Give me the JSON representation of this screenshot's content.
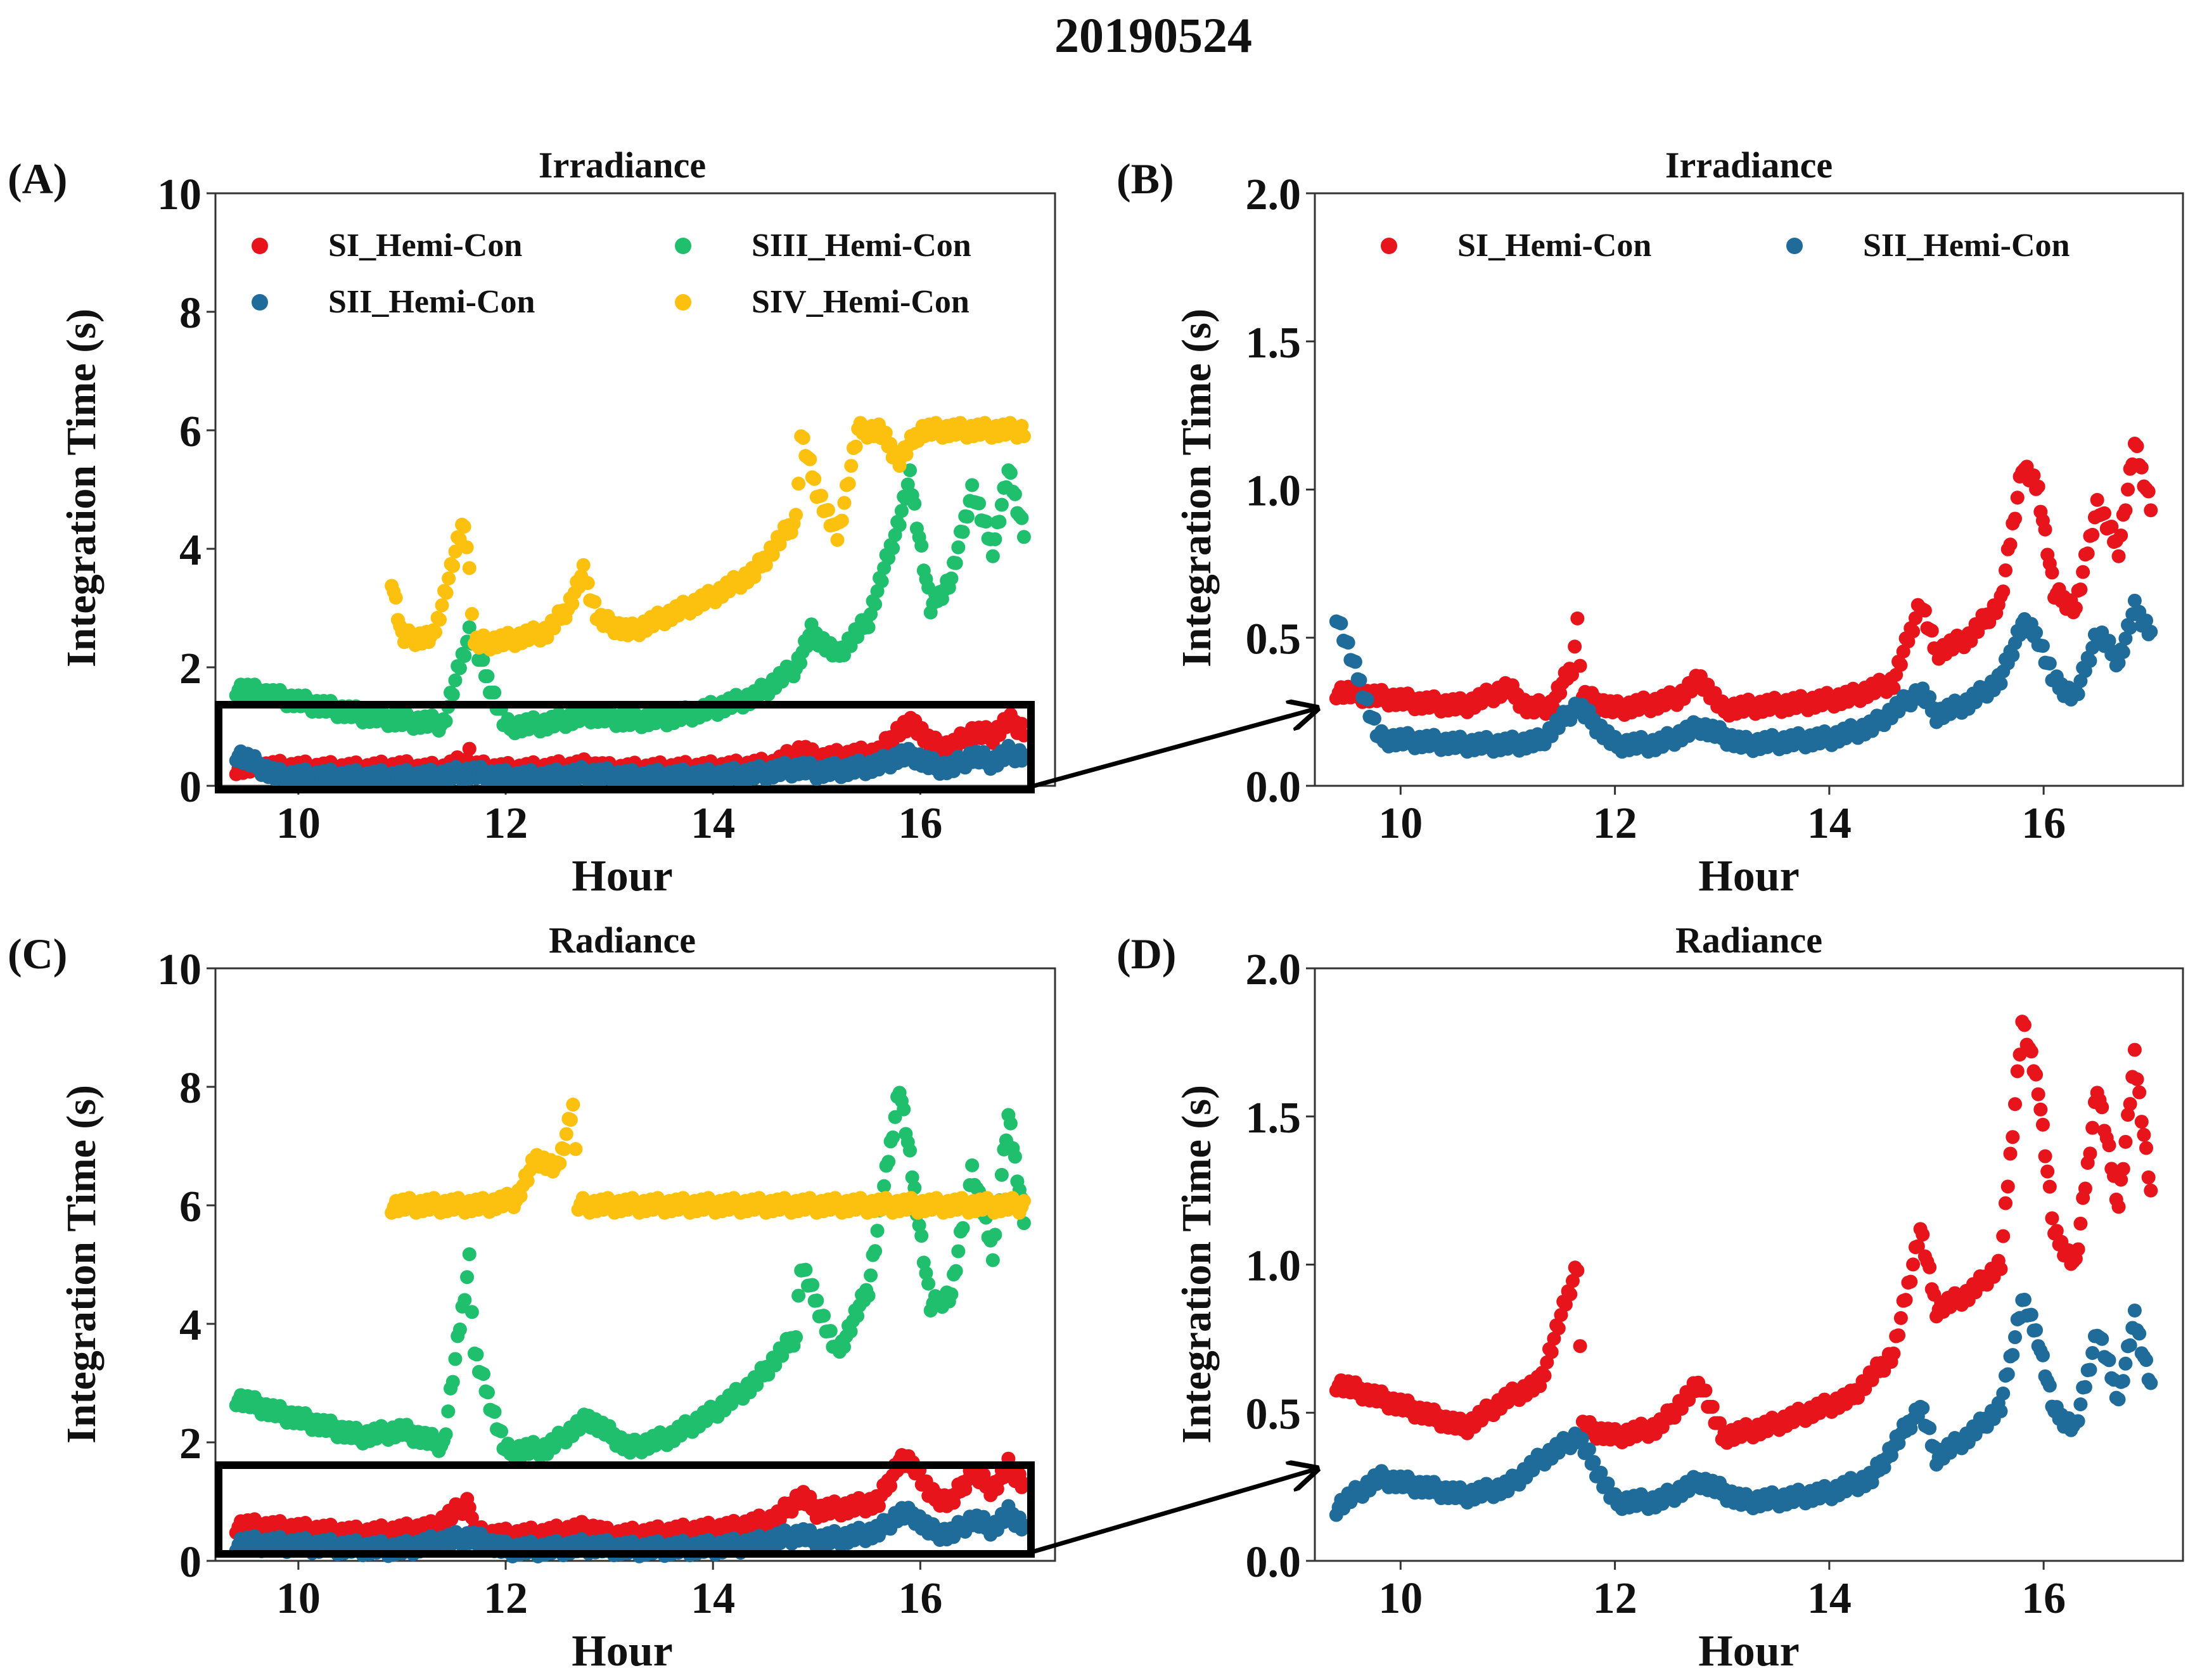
{
  "figure_title": "20190524",
  "colors": {
    "SI": "#e8141c",
    "SII": "#1f6b9a",
    "SIII": "#1fbf6e",
    "SIV": "#fcc10f",
    "axis": "#333333",
    "text": "#111111"
  },
  "chart_data": [
    {
      "panel": "(A)",
      "type": "scatter",
      "title": "Irradiance",
      "xlabel": "Hour",
      "ylabel": "Integration Time (s)",
      "xlim": [
        9.2,
        17.3
      ],
      "ylim": [
        0,
        10
      ],
      "xticks": [
        10,
        12,
        14,
        16
      ],
      "yticks": [
        0,
        2,
        4,
        6,
        8,
        10
      ],
      "xtick_labels": [
        "10",
        "12",
        "14",
        "16"
      ],
      "ytick_labels": [
        "0",
        "2",
        "4",
        "6",
        "8",
        "10"
      ],
      "legend": "top, two columns",
      "zoom_box": {
        "x": [
          9.3,
          17.05
        ],
        "y": [
          0,
          1.3
        ]
      },
      "series": [
        {
          "name": "SI_Hemi-Con",
          "color_key": "SI",
          "x": [
            9.4,
            9.8,
            10.2,
            10.6,
            11.0,
            11.2,
            11.4,
            11.6,
            11.65,
            11.7,
            12.0,
            12.4,
            12.6,
            12.8,
            13.0,
            13.4,
            13.8,
            14.2,
            14.6,
            14.85,
            15.0,
            15.3,
            15.6,
            15.8,
            15.95,
            16.1,
            16.3,
            16.5,
            16.7,
            16.85,
            17.0
          ],
          "y": [
            0.32,
            0.3,
            0.28,
            0.27,
            0.3,
            0.26,
            0.27,
            0.4,
            0.55,
            0.3,
            0.26,
            0.28,
            0.3,
            0.33,
            0.26,
            0.27,
            0.28,
            0.3,
            0.35,
            0.6,
            0.45,
            0.5,
            0.55,
            0.95,
            1.05,
            0.7,
            0.65,
            0.9,
            0.85,
            1.1,
            0.95
          ]
        },
        {
          "name": "SII_Hemi-Con",
          "color_key": "SII",
          "x": [
            9.4,
            9.8,
            10.2,
            10.6,
            11.0,
            11.3,
            11.65,
            12.0,
            12.4,
            12.8,
            13.2,
            13.6,
            14.0,
            14.4,
            14.85,
            15.0,
            15.3,
            15.6,
            15.8,
            15.95,
            16.1,
            16.3,
            16.5,
            16.7,
            16.85,
            17.0
          ],
          "y": [
            0.55,
            0.16,
            0.15,
            0.14,
            0.14,
            0.15,
            0.22,
            0.14,
            0.14,
            0.2,
            0.14,
            0.15,
            0.16,
            0.2,
            0.3,
            0.24,
            0.28,
            0.35,
            0.5,
            0.5,
            0.35,
            0.3,
            0.5,
            0.4,
            0.55,
            0.52
          ]
        },
        {
          "name": "SIII_Hemi-Con",
          "color_key": "SIII",
          "x": [
            9.4,
            9.8,
            10.2,
            10.6,
            11.0,
            11.4,
            11.65,
            12.0,
            12.4,
            12.8,
            13.2,
            13.6,
            14.0,
            14.4,
            14.8,
            14.95,
            15.2,
            15.5,
            15.8,
            15.9,
            16.1,
            16.3,
            16.5,
            16.7,
            16.85,
            17.0
          ],
          "y": [
            1.65,
            1.5,
            1.35,
            1.2,
            1.1,
            1.05,
            2.6,
            1.0,
            1.05,
            1.2,
            1.1,
            1.15,
            1.3,
            1.5,
            2.0,
            2.6,
            2.2,
            2.8,
            4.5,
            5.2,
            3.0,
            3.5,
            5.0,
            4.0,
            5.3,
            4.3
          ]
        },
        {
          "name": "SIV_Hemi-Con",
          "color_key": "SIV",
          "x": [
            10.9,
            11.0,
            11.3,
            11.6,
            11.65,
            11.7,
            12.0,
            12.4,
            12.6,
            12.75,
            12.9,
            13.2,
            13.6,
            14.0,
            14.4,
            14.8,
            14.85,
            15.0,
            15.2,
            15.4,
            15.6,
            15.8,
            16.0,
            16.3,
            16.6,
            17.0
          ],
          "y": [
            3.5,
            2.5,
            2.5,
            4.5,
            3.6,
            2.4,
            2.45,
            2.6,
            3.0,
            3.6,
            2.8,
            2.6,
            2.9,
            3.2,
            3.6,
            4.5,
            5.9,
            5.0,
            4.2,
            6.0,
            6.0,
            5.5,
            6.0,
            6.0,
            6.0,
            6.0
          ]
        }
      ]
    },
    {
      "panel": "(B)",
      "type": "scatter",
      "title": "Irradiance",
      "xlabel": "Hour",
      "ylabel": "Integration Time (s)",
      "xlim": [
        9.2,
        17.3
      ],
      "ylim": [
        0,
        2.0
      ],
      "xticks": [
        10,
        12,
        14,
        16
      ],
      "yticks": [
        0,
        0.5,
        1.0,
        1.5,
        2.0
      ],
      "xtick_labels": [
        "10",
        "12",
        "14",
        "16"
      ],
      "ytick_labels": [
        "0.0",
        "0.5",
        "1.0",
        "1.5",
        "2.0"
      ],
      "legend": "top, two columns",
      "series": [
        {
          "name": "SI_Hemi-Con",
          "color_key": "SI",
          "x": [
            9.4,
            9.8,
            10.2,
            10.6,
            11.0,
            11.2,
            11.4,
            11.6,
            11.65,
            11.7,
            12.0,
            12.4,
            12.6,
            12.8,
            13.0,
            13.4,
            13.8,
            14.2,
            14.6,
            14.85,
            15.0,
            15.3,
            15.6,
            15.8,
            15.95,
            16.1,
            16.3,
            16.5,
            16.7,
            16.85,
            17.0
          ],
          "y": [
            0.32,
            0.3,
            0.28,
            0.27,
            0.33,
            0.26,
            0.27,
            0.4,
            0.55,
            0.3,
            0.26,
            0.28,
            0.3,
            0.36,
            0.26,
            0.27,
            0.28,
            0.3,
            0.35,
            0.62,
            0.45,
            0.5,
            0.62,
            1.08,
            1.0,
            0.65,
            0.6,
            0.95,
            0.8,
            1.15,
            0.95
          ]
        },
        {
          "name": "SII_Hemi-Con",
          "color_key": "SII",
          "x": [
            9.4,
            9.8,
            10.2,
            10.6,
            11.0,
            11.3,
            11.65,
            12.0,
            12.4,
            12.8,
            13.2,
            13.6,
            14.0,
            14.4,
            14.85,
            15.0,
            15.3,
            15.6,
            15.8,
            15.95,
            16.1,
            16.3,
            16.5,
            16.7,
            16.85,
            17.0
          ],
          "y": [
            0.58,
            0.16,
            0.15,
            0.14,
            0.14,
            0.15,
            0.27,
            0.14,
            0.14,
            0.2,
            0.14,
            0.15,
            0.16,
            0.2,
            0.32,
            0.24,
            0.28,
            0.36,
            0.55,
            0.5,
            0.35,
            0.3,
            0.52,
            0.42,
            0.6,
            0.52
          ]
        }
      ]
    },
    {
      "panel": "(C)",
      "type": "scatter",
      "title": "Radiance",
      "xlabel": "Hour",
      "ylabel": "Integration Time (s)",
      "xlim": [
        9.2,
        17.3
      ],
      "ylim": [
        0,
        10
      ],
      "xticks": [
        10,
        12,
        14,
        16
      ],
      "yticks": [
        0,
        2,
        4,
        6,
        8,
        10
      ],
      "xtick_labels": [
        "10",
        "12",
        "14",
        "16"
      ],
      "ytick_labels": [
        "0",
        "2",
        "4",
        "6",
        "8",
        "10"
      ],
      "zoom_box": {
        "x": [
          9.3,
          17.05
        ],
        "y": [
          0,
          1.6
        ]
      },
      "series": [
        {
          "name": "SI_Hemi-Con",
          "color_key": "SI",
          "x": [
            9.4,
            9.8,
            10.2,
            10.6,
            11.0,
            11.3,
            11.65,
            11.7,
            12.0,
            12.4,
            12.8,
            13.0,
            13.4,
            13.8,
            14.2,
            14.6,
            14.85,
            15.0,
            15.3,
            15.6,
            15.8,
            15.95,
            16.1,
            16.3,
            16.5,
            16.7,
            16.85,
            17.0
          ],
          "y": [
            0.6,
            0.55,
            0.5,
            0.45,
            0.5,
            0.55,
            1.0,
            0.45,
            0.42,
            0.45,
            0.55,
            0.42,
            0.45,
            0.5,
            0.55,
            0.7,
            1.1,
            0.85,
            0.9,
            1.0,
            1.7,
            1.6,
            1.1,
            1.0,
            1.5,
            1.2,
            1.6,
            1.3
          ]
        },
        {
          "name": "SII_Hemi-Con",
          "color_key": "SII",
          "x": [
            9.4,
            9.8,
            10.2,
            10.6,
            11.0,
            11.3,
            11.65,
            12.0,
            12.4,
            12.8,
            13.2,
            13.6,
            14.0,
            14.4,
            14.85,
            15.0,
            15.3,
            15.6,
            15.8,
            15.95,
            16.1,
            16.3,
            16.5,
            16.7,
            16.85,
            17.0
          ],
          "y": [
            0.3,
            0.28,
            0.25,
            0.22,
            0.2,
            0.3,
            0.4,
            0.2,
            0.2,
            0.25,
            0.2,
            0.21,
            0.23,
            0.28,
            0.45,
            0.35,
            0.4,
            0.5,
            0.8,
            0.75,
            0.5,
            0.45,
            0.7,
            0.55,
            0.8,
            0.6
          ]
        },
        {
          "name": "SIII_Hemi-Con",
          "color_key": "SIII",
          "x": [
            9.4,
            9.8,
            10.2,
            10.6,
            11.0,
            11.4,
            11.65,
            11.7,
            12.0,
            12.4,
            12.8,
            13.2,
            13.6,
            14.0,
            14.4,
            14.8,
            14.85,
            15.2,
            15.5,
            15.8,
            15.9,
            16.1,
            16.3,
            16.5,
            16.7,
            16.85,
            17.0
          ],
          "y": [
            2.75,
            2.5,
            2.3,
            2.1,
            2.2,
            1.95,
            5.1,
            3.5,
            1.85,
            1.9,
            2.4,
            1.9,
            2.1,
            2.5,
            3.0,
            3.8,
            5.0,
            3.5,
            4.6,
            8.0,
            6.8,
            4.3,
            4.5,
            6.6,
            5.2,
            7.5,
            5.8
          ]
        },
        {
          "name": "SIV_Hemi-Con",
          "color_key": "SIV",
          "x": [
            10.9,
            11.2,
            11.5,
            11.8,
            12.1,
            12.3,
            12.5,
            12.65,
            12.7,
            12.9,
            13.2,
            13.6,
            14.0,
            14.4,
            14.8,
            15.2,
            15.6,
            16.0,
            16.4,
            16.8,
            17.0
          ],
          "y": [
            6.0,
            6.0,
            6.0,
            6.0,
            6.1,
            6.8,
            6.6,
            7.7,
            6.0,
            6.0,
            6.0,
            6.0,
            6.0,
            6.0,
            6.0,
            6.0,
            6.0,
            6.0,
            6.0,
            6.0,
            6.0
          ]
        }
      ]
    },
    {
      "panel": "(D)",
      "type": "scatter",
      "title": "Radiance",
      "xlabel": "Hour",
      "ylabel": "Integration Time (s)",
      "xlim": [
        9.2,
        17.3
      ],
      "ylim": [
        0,
        2.0
      ],
      "xticks": [
        10,
        12,
        14,
        16
      ],
      "yticks": [
        0,
        0.5,
        1.0,
        1.5,
        2.0
      ],
      "xtick_labels": [
        "10",
        "12",
        "14",
        "16"
      ],
      "ytick_labels": [
        "0.0",
        "0.5",
        "1.0",
        "1.5",
        "2.0"
      ],
      "series": [
        {
          "name": "SI_Hemi-Con",
          "color_key": "SI",
          "x": [
            9.4,
            9.8,
            10.2,
            10.6,
            11.0,
            11.3,
            11.65,
            11.7,
            12.0,
            12.4,
            12.8,
            13.0,
            13.4,
            13.8,
            14.2,
            14.6,
            14.85,
            15.0,
            15.3,
            15.6,
            15.8,
            15.95,
            16.1,
            16.3,
            16.5,
            16.7,
            16.85,
            17.0
          ],
          "y": [
            0.6,
            0.55,
            0.5,
            0.45,
            0.55,
            0.6,
            1.0,
            0.45,
            0.42,
            0.45,
            0.6,
            0.42,
            0.45,
            0.5,
            0.55,
            0.7,
            1.12,
            0.85,
            0.9,
            1.0,
            1.82,
            1.6,
            1.1,
            1.0,
            1.6,
            1.2,
            1.7,
            1.25
          ]
        },
        {
          "name": "SII_Hemi-Con",
          "color_key": "SII",
          "x": [
            9.4,
            9.8,
            10.2,
            10.6,
            11.0,
            11.3,
            11.65,
            12.0,
            12.4,
            12.8,
            13.2,
            13.6,
            14.0,
            14.4,
            14.85,
            15.0,
            15.3,
            15.6,
            15.8,
            15.95,
            16.1,
            16.3,
            16.5,
            16.7,
            16.85,
            17.0
          ],
          "y": [
            0.18,
            0.28,
            0.25,
            0.22,
            0.25,
            0.34,
            0.42,
            0.2,
            0.2,
            0.27,
            0.2,
            0.21,
            0.23,
            0.28,
            0.52,
            0.35,
            0.42,
            0.52,
            0.88,
            0.75,
            0.5,
            0.45,
            0.78,
            0.55,
            0.82,
            0.6
          ]
        }
      ]
    }
  ]
}
